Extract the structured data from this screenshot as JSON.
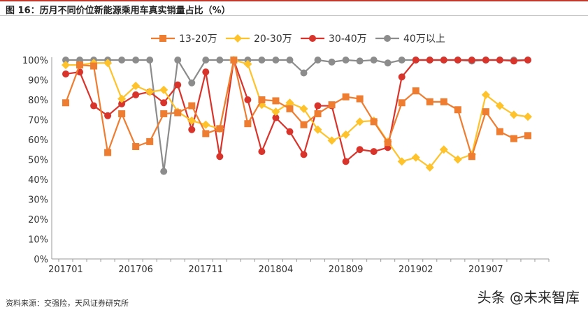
{
  "figure": {
    "title": "图 16：历月不同价位新能源乘用车真实销量占比（%）",
    "source": "资料来源：交强险，天风证券研究所",
    "watermark": "头条 @未来智库"
  },
  "chart_data": {
    "type": "line",
    "title": "图 16：历月不同价位新能源乘用车真实销量占比（%）",
    "xlabel": "",
    "ylabel": "",
    "ylim": [
      0,
      100
    ],
    "yticks": [
      "0%",
      "10%",
      "20%",
      "30%",
      "40%",
      "50%",
      "60%",
      "70%",
      "80%",
      "90%",
      "100%"
    ],
    "xticks": [
      "201701",
      "201706",
      "201711",
      "201804",
      "201809",
      "201902",
      "201907"
    ],
    "legend_position": "top",
    "grid": false,
    "months": [
      "201701",
      "201702",
      "201703",
      "201704",
      "201705",
      "201706",
      "201707",
      "201708",
      "201709",
      "201710",
      "201711",
      "201712",
      "201801",
      "201802",
      "201803",
      "201804",
      "201805",
      "201806",
      "201807",
      "201808",
      "201809",
      "201810",
      "201811",
      "201812",
      "201901",
      "201902",
      "201903",
      "201904",
      "201905",
      "201906",
      "201907",
      "201908",
      "201909",
      "201910",
      "201911"
    ],
    "series": [
      {
        "name": "13-20万",
        "color": "#ee7d31",
        "marker": "square",
        "values": [
          78.5,
          97.5,
          97,
          53.5,
          73,
          56.5,
          59,
          73,
          73.5,
          77,
          63,
          65.5,
          100,
          68,
          80,
          79.5,
          75.5,
          67.5,
          73,
          77.5,
          81.5,
          80.5,
          69,
          58.5,
          78.5,
          84.5,
          79,
          79,
          75,
          51.5,
          74,
          64,
          60.5,
          62,
          null
        ]
      },
      {
        "name": "20-30万",
        "color": "#fec22a",
        "marker": "diamond",
        "values": [
          97.5,
          97.5,
          98.5,
          98.5,
          80.5,
          87,
          84,
          85,
          74,
          69.5,
          67.5,
          65.5,
          100,
          98,
          77.5,
          74,
          78.5,
          75.5,
          65,
          59.5,
          62.5,
          69,
          69.5,
          59,
          49,
          51,
          46,
          55,
          50,
          52.5,
          82.5,
          77,
          72.5,
          71.5,
          null
        ]
      },
      {
        "name": "30-40万",
        "color": "#d9342b",
        "marker": "circle",
        "values": [
          93,
          94,
          77,
          72,
          78,
          82.5,
          84,
          78.5,
          87.5,
          65,
          94,
          51.5,
          100,
          80,
          54,
          71,
          64,
          52.5,
          77,
          77,
          49,
          55,
          54,
          56,
          91.5,
          100,
          100,
          100,
          100,
          100,
          100,
          100,
          99.5,
          100,
          null
        ]
      },
      {
        "name": "40万以上",
        "color": "#8c8c8c",
        "marker": "circle",
        "values": [
          100,
          100,
          100,
          100,
          100,
          100,
          100,
          44,
          100,
          88.5,
          100,
          100,
          100,
          100,
          100,
          100,
          100,
          93.5,
          100,
          99,
          100,
          99.5,
          100,
          98.5,
          100,
          100,
          100,
          100,
          100,
          99.5,
          100,
          100,
          100,
          100,
          null
        ]
      }
    ]
  }
}
